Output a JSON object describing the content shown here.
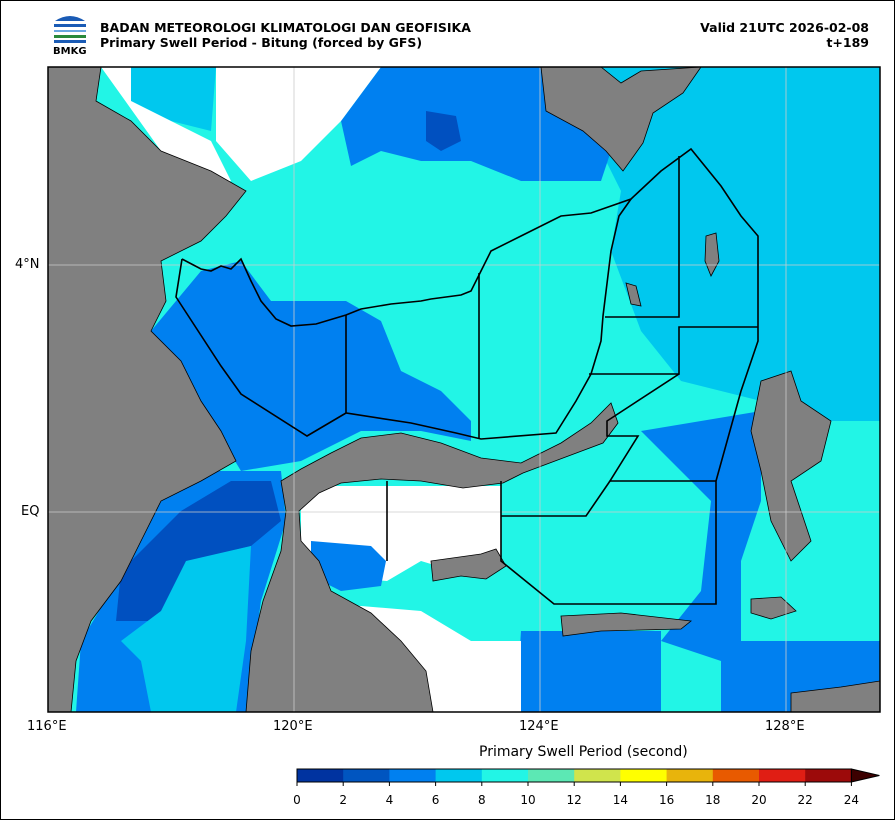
{
  "header": {
    "org": "BADAN METEOROLOGI KLIMATOLOGI DAN GEOFISIKA",
    "title": "Primary Swell Period - Bitung (forced by GFS)",
    "valid": "Valid 21UTC 2026-02-08",
    "lead": "t+189",
    "logo_text": "BMKG"
  },
  "axes": {
    "x_ticks": [
      "116°E",
      "120°E",
      "124°E",
      "128°E"
    ],
    "y_ticks": [
      "4°N",
      "EQ"
    ]
  },
  "colorbar": {
    "title": "Primary Swell Period (second)",
    "labels": [
      "0",
      "2",
      "4",
      "6",
      "8",
      "10",
      "12",
      "14",
      "16",
      "18",
      "20",
      "22",
      "24"
    ],
    "colors": [
      "#0033a0",
      "#0055c0",
      "#0080f0",
      "#00c8ee",
      "#22f5e6",
      "#5ce8b4",
      "#d0e44c",
      "#ffff00",
      "#e8b40c",
      "#e85a00",
      "#e01e14",
      "#9c0a0a",
      "#3c0000"
    ],
    "land_color": "#808080"
  }
}
